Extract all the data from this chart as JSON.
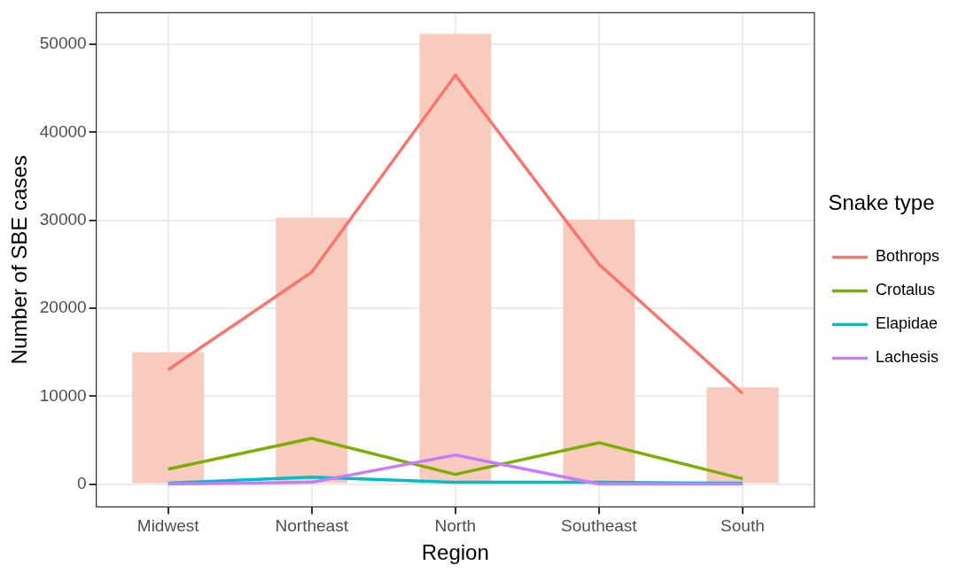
{
  "chart_data": {
    "type": "line",
    "xlabel": "Region",
    "ylabel": "Number of SBE cases",
    "legend_title": "Snake type",
    "categories": [
      "Midwest",
      "Northeast",
      "North",
      "Southeast",
      "South"
    ],
    "series": [
      {
        "type": "bar",
        "color": "#f9cbbf",
        "values": [
          15000,
          30300,
          51200,
          30100,
          11000
        ]
      },
      {
        "name": "Bothrops",
        "color": "#f8766d",
        "values": [
          13000,
          24100,
          46500,
          25000,
          10300
        ]
      },
      {
        "name": "Crotalus",
        "color": "#7cae00",
        "values": [
          1700,
          5200,
          1100,
          4700,
          600
        ]
      },
      {
        "name": "Elapidae",
        "color": "#00bfc4",
        "values": [
          100,
          800,
          200,
          200,
          100
        ]
      },
      {
        "name": "Lachesis",
        "color": "#c77cff",
        "values": [
          0,
          200,
          3300,
          0,
          0
        ]
      }
    ],
    "ylim": [
      -2600,
      53600
    ],
    "yticks": [
      0,
      10000,
      20000,
      30000,
      40000,
      50000
    ],
    "grid": true,
    "legend": "right",
    "marker": "none",
    "line_style": "solid"
  }
}
